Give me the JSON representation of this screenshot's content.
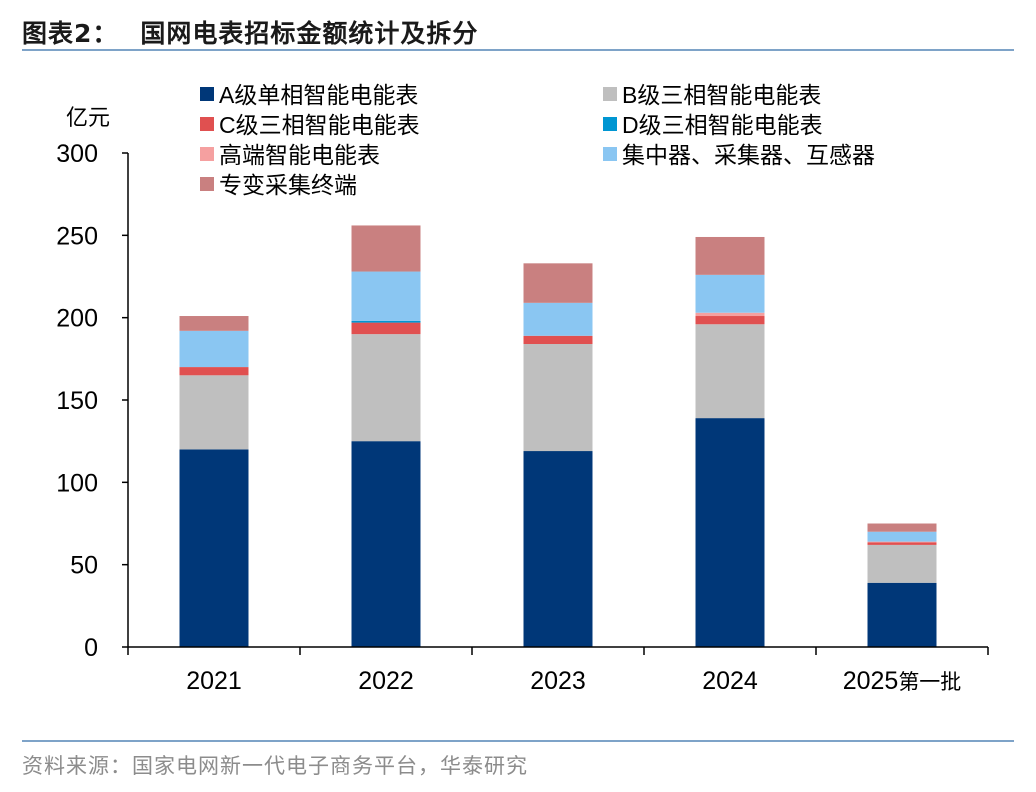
{
  "title_prefix": "图表2：",
  "title_text": "国网电表招标金额统计及拆分",
  "source": "资料来源：国家电网新一代电子商务平台，华泰研究",
  "chart_data": {
    "type": "bar",
    "stacked": true,
    "categories": [
      "2021",
      "2022",
      "2023",
      "2024",
      "2025第一批"
    ],
    "ylabel": "亿元",
    "ylim": [
      0,
      300
    ],
    "yticks": [
      0,
      50,
      100,
      150,
      200,
      250,
      300
    ],
    "grid": false,
    "legend_position": "top",
    "series": [
      {
        "name": "A级单相智能电能表",
        "color": "#003778",
        "values": [
          120,
          125,
          119,
          139,
          39
        ]
      },
      {
        "name": "B级三相智能电能表",
        "color": "#bfbfbf",
        "values": [
          45,
          65,
          65,
          57,
          23
        ]
      },
      {
        "name": "C级三相智能电能表",
        "color": "#e05050",
        "values": [
          5,
          7,
          5,
          5,
          1.5
        ]
      },
      {
        "name": "D级三相智能电能表",
        "color": "#0096d2",
        "values": [
          0,
          1,
          0,
          0,
          0
        ]
      },
      {
        "name": "高端智能电能表",
        "color": "#f5a0a0",
        "values": [
          0,
          0,
          0,
          2,
          0.5
        ]
      },
      {
        "name": "集中器、采集器、互感器",
        "color": "#8ac6f2",
        "values": [
          22,
          30,
          20,
          23,
          6
        ]
      },
      {
        "name": "专变采集终端",
        "color": "#c98080",
        "values": [
          9,
          28,
          24,
          23,
          5
        ]
      }
    ]
  }
}
